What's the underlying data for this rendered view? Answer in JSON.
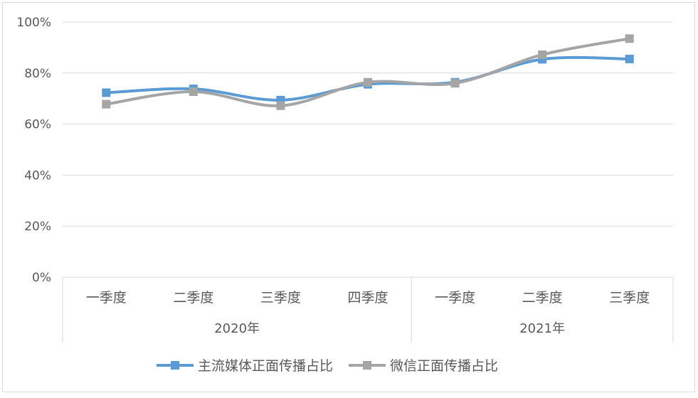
{
  "chart_data": {
    "type": "line",
    "title": "",
    "xlabel": "",
    "ylabel": "",
    "y_ticks": [
      "0%",
      "20%",
      "40%",
      "60%",
      "80%",
      "100%"
    ],
    "ylim": [
      0,
      100
    ],
    "grid": true,
    "legend_position": "bottom",
    "categories": [
      "一季度",
      "二季度",
      "三季度",
      "四季度",
      "一季度",
      "二季度",
      "三季度"
    ],
    "groups": [
      {
        "label": "2020年",
        "count": 4
      },
      {
        "label": "2021年",
        "count": 3
      }
    ],
    "series": [
      {
        "name": "主流媒体正面传播占比",
        "color": "#5b9bd5",
        "values": [
          72.3,
          73.8,
          69.4,
          75.6,
          76.4,
          85.4,
          85.5
        ]
      },
      {
        "name": "微信正面传播占比",
        "color": "#a5a5a5",
        "values": [
          67.8,
          72.7,
          67.2,
          76.4,
          76.0,
          87.2,
          93.5
        ]
      }
    ]
  }
}
